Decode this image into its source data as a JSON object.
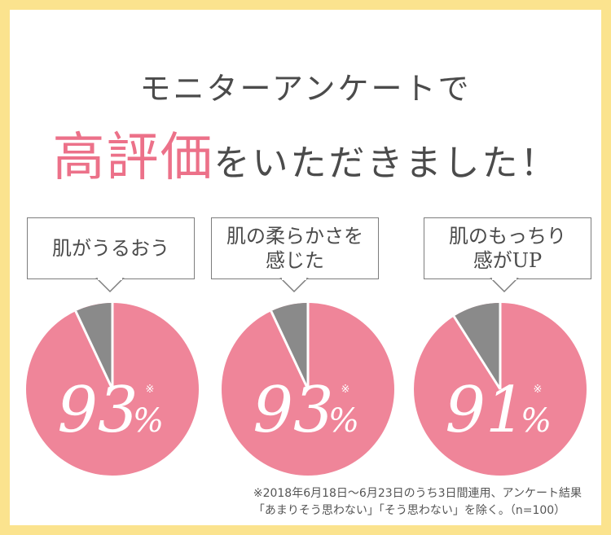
{
  "heading": {
    "line1": "モニターアンケートで",
    "highlight": "高評価",
    "line2_rest": "をいただきました！"
  },
  "cards": [
    {
      "label": "肌がうるおう",
      "value_text": "93",
      "percent_sign": "%",
      "mark": "※"
    },
    {
      "label": "肌の柔らかさを\n感じた",
      "value_text": "93",
      "percent_sign": "%",
      "mark": "※"
    },
    {
      "label": "肌のもっちり\n感がUP",
      "value_text": "91",
      "percent_sign": "%",
      "mark": "※"
    }
  ],
  "footnote": {
    "line1": "※2018年6月18日～6月23日のうち3日間連用、アンケート結果",
    "line2": "「あまりそう思わない」「そう思わない」を除く。（n=100）"
  },
  "colors": {
    "pink": "#ef8599",
    "gray": "#8a8a8a",
    "frame": "#fbe38e",
    "highlight": "#ec7189"
  },
  "chart_data": {
    "type": "pie",
    "charts": [
      {
        "label": "肌がうるおう",
        "values": [
          93,
          7
        ]
      },
      {
        "label": "肌の柔らかさを感じた",
        "values": [
          93,
          7
        ]
      },
      {
        "label": "肌のもっちり感がUP",
        "values": [
          91,
          9
        ]
      }
    ]
  }
}
